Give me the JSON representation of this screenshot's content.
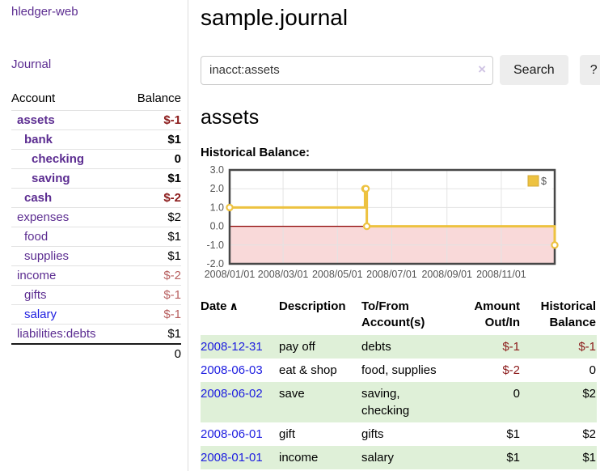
{
  "app": {
    "brand": "hledger-web"
  },
  "colors": {
    "link_visited_purple": "#5c2d91",
    "link_unvisited_blue": "#1d1de0",
    "negative_strong": "#8b1a1a",
    "negative_muted": "#b86060",
    "row_stripe_green": "#dff0d8",
    "chart_series_yellow": "#edc240",
    "chart_zero_line": "#8b0000",
    "chart_negative_region": "#f9d9d9"
  },
  "sidebar": {
    "nav": {
      "journal_label": "Journal"
    },
    "table": {
      "headers": {
        "account": "Account",
        "balance": "Balance"
      },
      "rows": [
        {
          "name": "assets",
          "depth": 0,
          "emphasis": true,
          "link": "visited",
          "balance": "$-1",
          "tone": "negative"
        },
        {
          "name": "bank",
          "depth": 1,
          "emphasis": true,
          "link": "visited",
          "balance": "$1",
          "tone": "normal"
        },
        {
          "name": "checking",
          "depth": 2,
          "emphasis": true,
          "link": "visited",
          "balance": "0",
          "tone": "normal"
        },
        {
          "name": "saving",
          "depth": 2,
          "emphasis": true,
          "link": "visited",
          "balance": "$1",
          "tone": "normal"
        },
        {
          "name": "cash",
          "depth": 1,
          "emphasis": true,
          "link": "visited",
          "balance": "$-2",
          "tone": "negative"
        },
        {
          "name": "expenses",
          "depth": 0,
          "emphasis": false,
          "link": "visited",
          "balance": "$2",
          "tone": "normal"
        },
        {
          "name": "food",
          "depth": 1,
          "emphasis": false,
          "link": "visited",
          "balance": "$1",
          "tone": "normal"
        },
        {
          "name": "supplies",
          "depth": 1,
          "emphasis": false,
          "link": "visited",
          "balance": "$1",
          "tone": "normal"
        },
        {
          "name": "income",
          "depth": 0,
          "emphasis": false,
          "link": "visited",
          "balance": "$-2",
          "tone": "negative-muted"
        },
        {
          "name": "gifts",
          "depth": 1,
          "emphasis": false,
          "link": "visited",
          "balance": "$-1",
          "tone": "negative-muted"
        },
        {
          "name": "salary",
          "depth": 1,
          "emphasis": false,
          "link": "unvisited",
          "balance": "$-1",
          "tone": "negative-muted"
        },
        {
          "name": "liabilities:debts",
          "depth": 0,
          "emphasis": false,
          "link": "visited",
          "balance": "$1",
          "tone": "normal"
        }
      ],
      "total": "0"
    }
  },
  "header": {
    "title": "sample.journal"
  },
  "search": {
    "value": "inacct:assets",
    "clear_icon": "×",
    "button_label": "Search",
    "help_label": "?"
  },
  "section": {
    "heading": "assets",
    "chart_label": "Historical Balance:"
  },
  "chart_data": {
    "type": "line",
    "title": "Historical Balance:",
    "legend": "$",
    "legend_position": "top-right",
    "grid": true,
    "steps": true,
    "ylim": [
      -2.0,
      3.0
    ],
    "y_ticks": [
      3.0,
      2.0,
      1.0,
      0.0,
      -1.0,
      -2.0
    ],
    "xlim": [
      "2008-01-01",
      "2008-12-31"
    ],
    "x_ticks": [
      {
        "label": "2008/01/01",
        "date": "2008-01-01"
      },
      {
        "label": "2008/03/01",
        "date": "2008-03-01"
      },
      {
        "label": "2008/05/01",
        "date": "2008-05-01"
      },
      {
        "label": "2008/07/01",
        "date": "2008-07-01"
      },
      {
        "label": "2008/09/01",
        "date": "2008-09-01"
      },
      {
        "label": "2008/11/01",
        "date": "2008-11-01"
      }
    ],
    "series": [
      {
        "name": "$",
        "color": "#edc240",
        "marker": "open-circle",
        "points": [
          {
            "x": "2008-01-01",
            "y": 1
          },
          {
            "x": "2008-06-01",
            "y": 2
          },
          {
            "x": "2008-06-02",
            "y": 2
          },
          {
            "x": "2008-06-03",
            "y": 0
          },
          {
            "x": "2008-12-31",
            "y": -1
          }
        ]
      }
    ],
    "zero_line_color": "#8b0000",
    "negative_region_color": "#f9d9d9"
  },
  "register": {
    "headers": {
      "date": "Date",
      "sort_icon": "∧",
      "description": "Description",
      "accounts": "To/From Account(s)",
      "amount": "Amount Out/In",
      "balance": "Historical Balance"
    },
    "rows": [
      {
        "date": "2008-12-31",
        "description": "pay off",
        "accounts": "debts",
        "amount": "$-1",
        "amount_negative": true,
        "balance": "$-1",
        "balance_negative": true
      },
      {
        "date": "2008-06-03",
        "description": "eat & shop",
        "accounts": "food, supplies",
        "amount": "$-2",
        "amount_negative": true,
        "balance": "0",
        "balance_negative": false
      },
      {
        "date": "2008-06-02",
        "description": "save",
        "accounts": "saving, checking",
        "amount": "0",
        "amount_negative": false,
        "balance": "$2",
        "balance_negative": false
      },
      {
        "date": "2008-06-01",
        "description": "gift",
        "accounts": "gifts",
        "amount": "$1",
        "amount_negative": false,
        "balance": "$2",
        "balance_negative": false
      },
      {
        "date": "2008-01-01",
        "description": "income",
        "accounts": "salary",
        "amount": "$1",
        "amount_negative": false,
        "balance": "$1",
        "balance_negative": false
      }
    ]
  }
}
